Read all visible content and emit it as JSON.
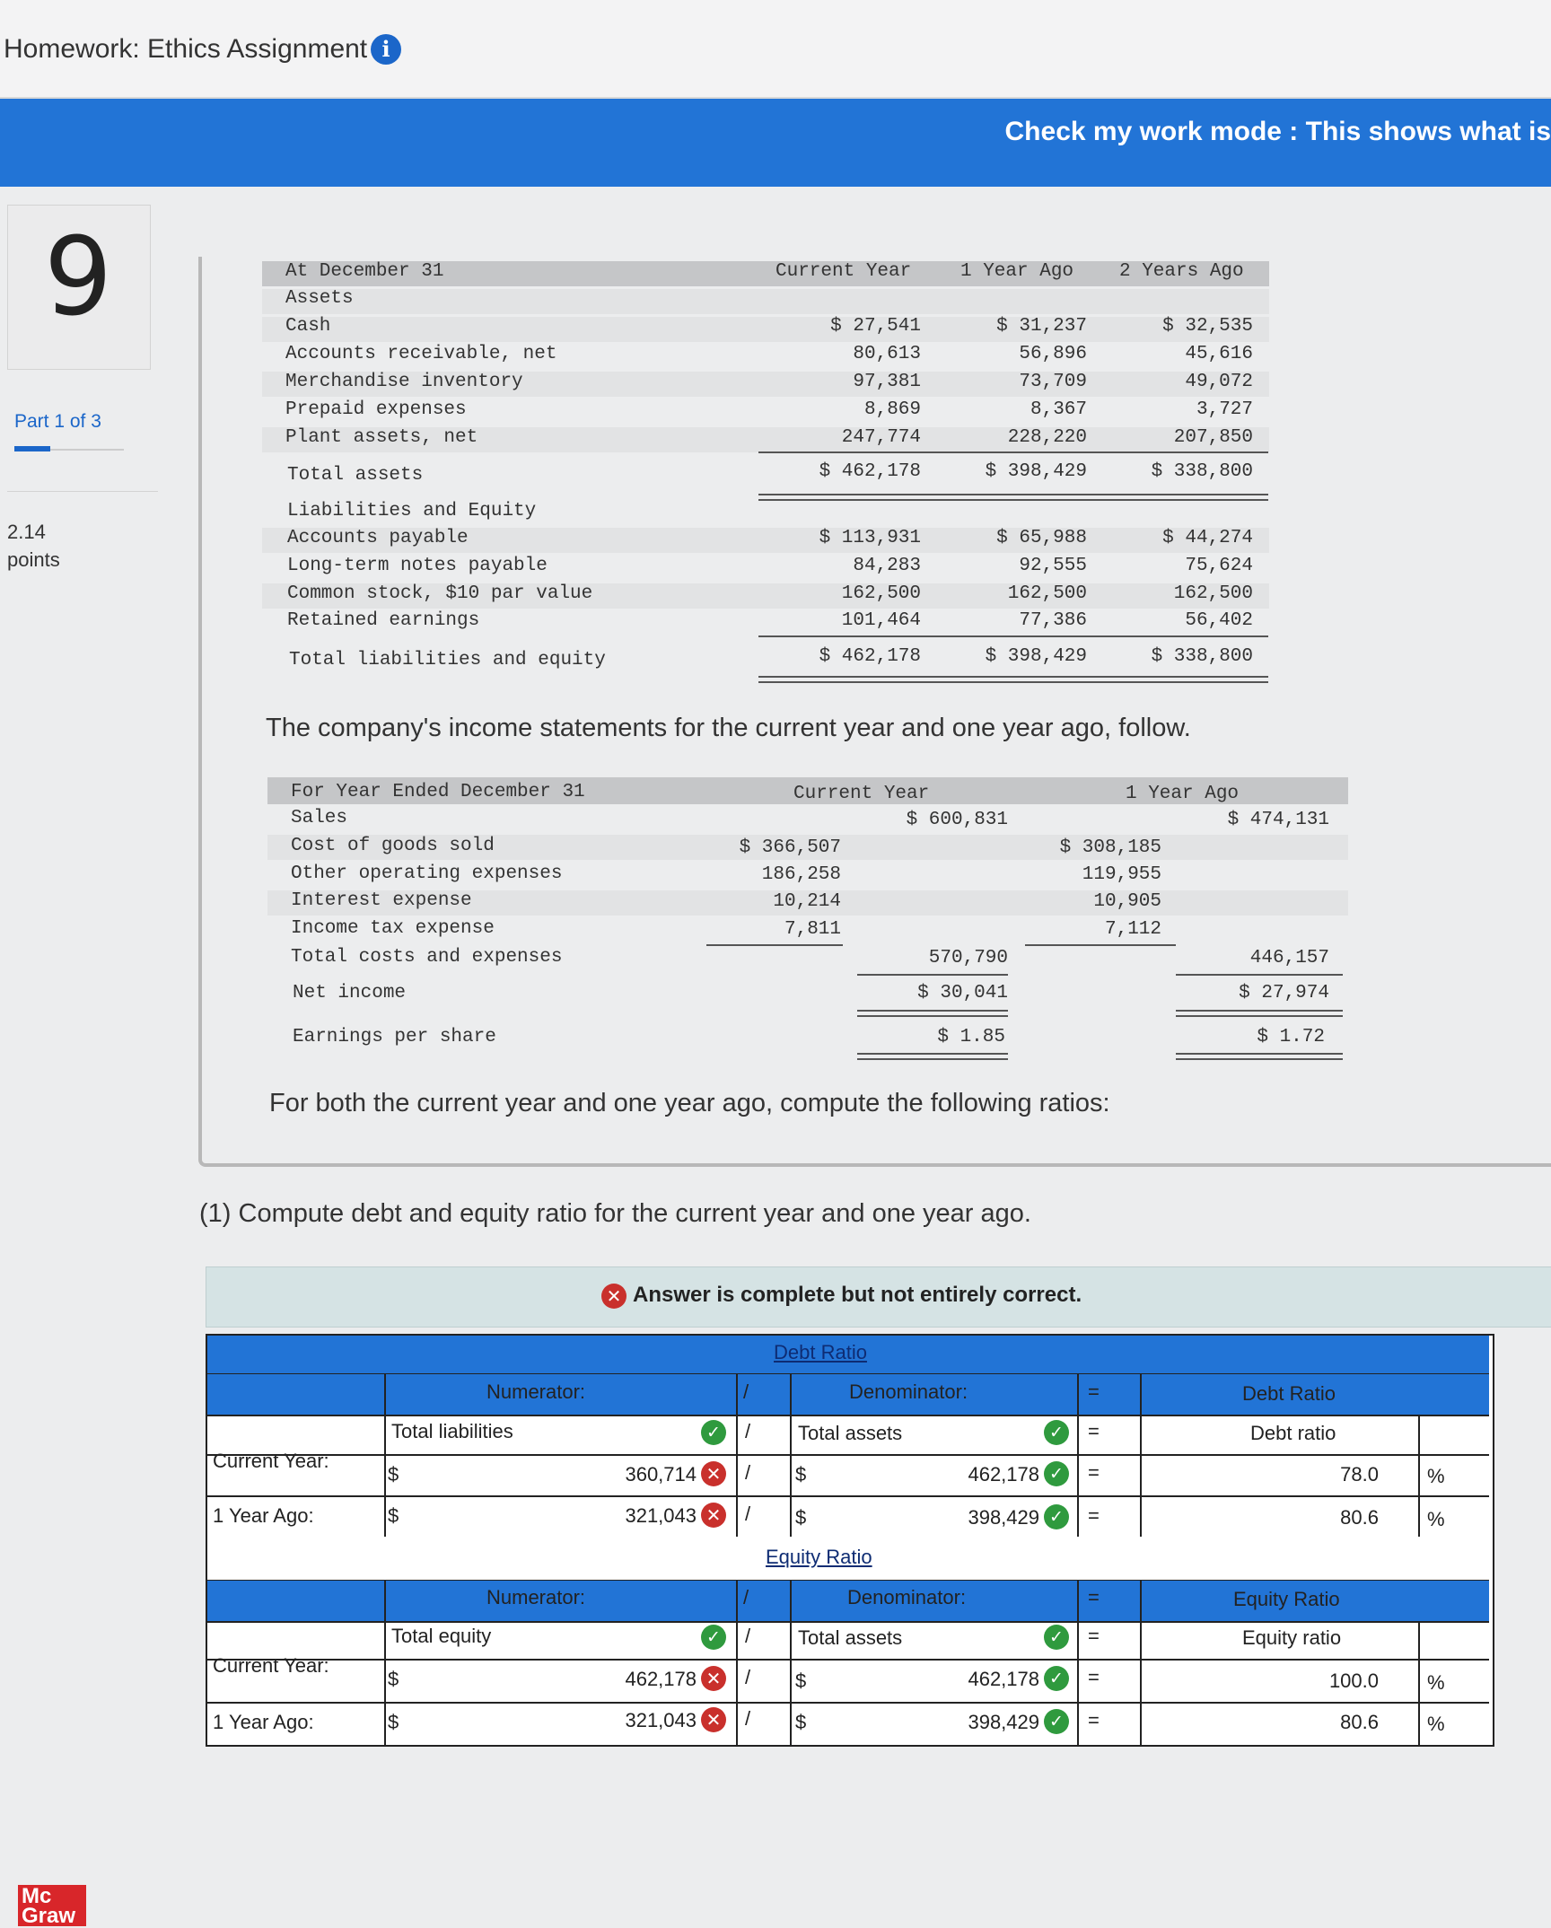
{
  "header": {
    "title": "Homework: Ethics Assignment",
    "info_icon": "info-icon"
  },
  "banner": {
    "text": "Check my work mode : This shows what is"
  },
  "sidebar": {
    "question_number": "9",
    "part": "Part 1 of 3",
    "points_value": "2.14",
    "points_label": "points"
  },
  "balance_sheet": {
    "header": {
      "label": "At December 31",
      "col1": "Current Year",
      "col2": "1 Year Ago",
      "col3": "2 Years Ago"
    },
    "assets_heading": "Assets",
    "rows": [
      {
        "label": "Cash",
        "c1": "$ 27,541",
        "c2": "$ 31,237",
        "c3": "$ 32,535"
      },
      {
        "label": "Accounts receivable, net",
        "c1": "80,613",
        "c2": "56,896",
        "c3": "45,616"
      },
      {
        "label": "Merchandise inventory",
        "c1": "97,381",
        "c2": "73,709",
        "c3": "49,072"
      },
      {
        "label": "Prepaid expenses",
        "c1": "8,869",
        "c2": "8,367",
        "c3": "3,727"
      },
      {
        "label": "Plant assets, net",
        "c1": "247,774",
        "c2": "228,220",
        "c3": "207,850"
      }
    ],
    "total_assets": {
      "label": "Total assets",
      "c1": "$ 462,178",
      "c2": "$ 398,429",
      "c3": "$ 338,800"
    },
    "liab_heading": "Liabilities and Equity",
    "liab_rows": [
      {
        "label": "Accounts payable",
        "c1": "$ 113,931",
        "c2": "$ 65,988",
        "c3": "$ 44,274"
      },
      {
        "label": "Long-term notes payable",
        "c1": "84,283",
        "c2": "92,555",
        "c3": "75,624"
      },
      {
        "label": "Common stock, $10 par value",
        "c1": "162,500",
        "c2": "162,500",
        "c3": "162,500"
      },
      {
        "label": "Retained earnings",
        "c1": "101,464",
        "c2": "77,386",
        "c3": "56,402"
      }
    ],
    "total_liab": {
      "label": "Total liabilities and equity",
      "c1": "$ 462,178",
      "c2": "$ 398,429",
      "c3": "$ 338,800"
    }
  },
  "income_intro": "The company's income statements for the current year and one year ago, follow.",
  "income": {
    "header": {
      "label": "For Year Ended December 31",
      "col1": "Current Year",
      "col2": "1 Year Ago"
    },
    "sales": {
      "label": "Sales",
      "c1": "$ 600,831",
      "c2": "$ 474,131"
    },
    "rows": [
      {
        "label": "Cost of goods sold",
        "c1": "$ 366,507",
        "c2": "$ 308,185"
      },
      {
        "label": "Other operating expenses",
        "c1": "186,258",
        "c2": "119,955"
      },
      {
        "label": "Interest expense",
        "c1": "10,214",
        "c2": "10,905"
      },
      {
        "label": "Income tax expense",
        "c1": "7,811",
        "c2": "7,112"
      }
    ],
    "total_costs": {
      "label": "Total costs and expenses",
      "c1": "570,790",
      "c2": "446,157"
    },
    "net_income": {
      "label": "Net income",
      "c1": "$ 30,041",
      "c2": "$ 27,974"
    },
    "eps": {
      "label": "Earnings per share",
      "c1": "$ 1.85",
      "c2": "$ 1.72"
    }
  },
  "ratios_intro": "For both the current year and one year ago, compute the following ratios:",
  "question": "(1) Compute debt and equity ratio for the current year and one year ago.",
  "answer_status": "Answer is complete but not entirely correct.",
  "debt_ratio": {
    "title": "Debt Ratio",
    "numerator_label": "Numerator:",
    "denominator_label": "Denominator:",
    "result_label": "Debt Ratio",
    "slash": "/",
    "equals": "=",
    "numerator_name": "Total liabilities",
    "denominator_name": "Total assets",
    "result_name": "Debt ratio",
    "rows": [
      {
        "label": "Current Year:",
        "dollar": "$",
        "numerator": "360,714",
        "denominator": "462,178",
        "result": "78.0",
        "pct": "%"
      },
      {
        "label": "1 Year Ago:",
        "dollar": "$",
        "numerator": "321,043",
        "denominator": "398,429",
        "result": "80.6",
        "pct": "%"
      }
    ]
  },
  "equity_ratio": {
    "title": "Equity Ratio",
    "numerator_label": "Numerator:",
    "denominator_label": "Denominator:",
    "result_label": "Equity Ratio",
    "slash": "/",
    "equals": "=",
    "numerator_name": "Total equity",
    "denominator_name": "Total assets",
    "result_name": "Equity ratio",
    "rows": [
      {
        "label": "Current Year:",
        "dollar": "$",
        "numerator": "462,178",
        "denominator": "462,178",
        "result": "100.0",
        "pct": "%"
      },
      {
        "label": "1 Year Ago:",
        "dollar": "$",
        "numerator": "321,043",
        "denominator": "398,429",
        "result": "80.6",
        "pct": "%"
      }
    ]
  },
  "logo": {
    "line1": "Mc",
    "line2": "Graw"
  },
  "colors": {
    "brand_blue": "#2274d6",
    "correct": "#2f9a3e",
    "incorrect": "#c9302c"
  }
}
